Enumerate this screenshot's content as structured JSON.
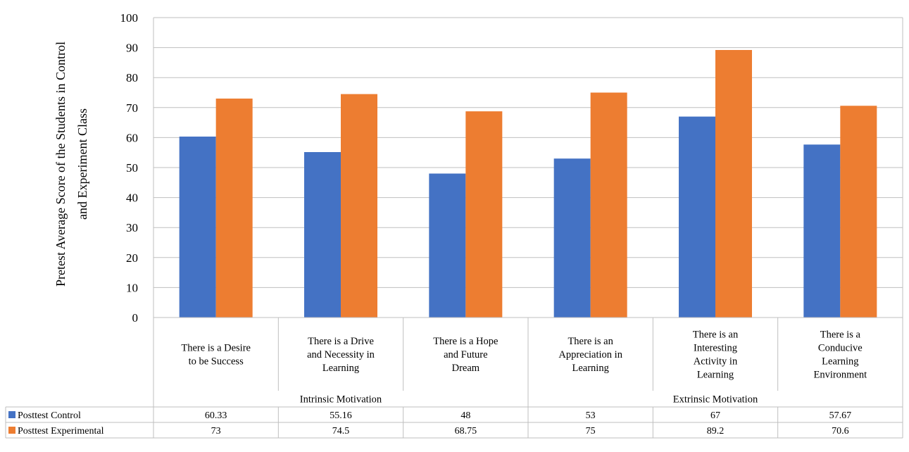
{
  "chart_data": {
    "type": "bar",
    "ylabel_lines": [
      "Pretest Average Score of the Students in Control",
      "and Experiment Class"
    ],
    "ylim": [
      0,
      100
    ],
    "yticks": [
      0,
      10,
      20,
      30,
      40,
      50,
      60,
      70,
      80,
      90,
      100
    ],
    "grid": true,
    "categories": [
      [
        "There is a Desire",
        "to be Success"
      ],
      [
        "There is a Drive",
        "and Necessity in",
        "Learning"
      ],
      [
        "There is a Hope",
        "and Future",
        "Dream"
      ],
      [
        "There is an",
        "Appreciation in",
        "Learning"
      ],
      [
        "There is an",
        "Interesting",
        "Activity in",
        "Learning"
      ],
      [
        "There is a",
        "Conducive",
        "Learning",
        "Environment"
      ]
    ],
    "groups": [
      {
        "label": "Intrinsic Motivation",
        "count": 3
      },
      {
        "label": "Extrinsic Motivation",
        "count": 3
      }
    ],
    "series": [
      {
        "name": "Posttest Control",
        "color": "#4472C4",
        "values": [
          60.33,
          55.16,
          48,
          53,
          67,
          57.67
        ]
      },
      {
        "name": "Posttest Experimental",
        "color": "#ED7D31",
        "values": [
          73,
          74.5,
          68.75,
          75,
          89.2,
          70.6
        ]
      }
    ],
    "legend": "data-table"
  }
}
